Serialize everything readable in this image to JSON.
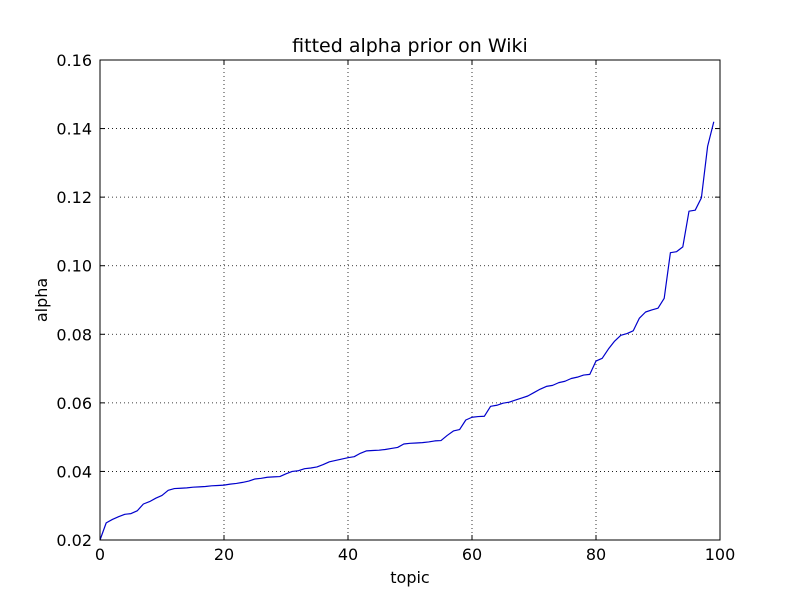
{
  "chart_data": {
    "type": "line",
    "title": "fitted alpha prior on Wiki",
    "xlabel": "topic",
    "ylabel": "alpha",
    "xlim": [
      0,
      100
    ],
    "ylim": [
      0.02,
      0.16
    ],
    "grid": true,
    "line_color": "#0000cc",
    "x_ticks": [
      0,
      20,
      40,
      60,
      80,
      100
    ],
    "y_ticks": [
      0.02,
      0.04,
      0.06,
      0.08,
      0.1,
      0.12,
      0.14,
      0.16
    ],
    "x_tick_labels": [
      "0",
      "20",
      "40",
      "60",
      "80",
      "100"
    ],
    "y_tick_labels": [
      "0.02",
      "0.04",
      "0.06",
      "0.08",
      "0.10",
      "0.12",
      "0.14",
      "0.16"
    ],
    "series": [
      {
        "x": [
          0,
          1,
          2,
          3,
          4,
          5,
          6,
          7,
          8,
          9,
          10,
          11,
          12,
          13,
          14,
          15,
          16,
          17,
          18,
          19,
          20,
          21,
          22,
          23,
          24,
          25,
          26,
          27,
          28,
          29,
          30,
          31,
          32,
          33,
          34,
          35,
          36,
          37,
          38,
          39,
          40,
          41,
          42,
          43,
          44,
          45,
          46,
          47,
          48,
          49,
          50,
          51,
          52,
          53,
          54,
          55,
          56,
          57,
          58,
          59,
          60,
          61,
          62,
          63,
          64,
          65,
          66,
          67,
          68,
          69,
          70,
          71,
          72,
          73,
          74,
          75,
          76,
          77,
          78,
          79,
          80,
          81,
          82,
          83,
          84,
          85,
          86,
          87,
          88,
          89,
          90,
          91,
          92,
          93,
          94,
          95,
          96,
          97,
          98,
          99
        ],
        "values": [
          0.02,
          0.025,
          0.026,
          0.0268,
          0.0275,
          0.0277,
          0.0285,
          0.0305,
          0.0312,
          0.0322,
          0.033,
          0.0345,
          0.035,
          0.0351,
          0.0352,
          0.0354,
          0.0355,
          0.0356,
          0.0358,
          0.0359,
          0.036,
          0.0363,
          0.0365,
          0.0368,
          0.0372,
          0.0378,
          0.038,
          0.0383,
          0.0384,
          0.0385,
          0.0393,
          0.04,
          0.0402,
          0.0408,
          0.041,
          0.0413,
          0.042,
          0.0428,
          0.0432,
          0.0436,
          0.044,
          0.0443,
          0.0453,
          0.046,
          0.0461,
          0.0462,
          0.0464,
          0.0467,
          0.047,
          0.048,
          0.0482,
          0.0483,
          0.0484,
          0.0486,
          0.0489,
          0.049,
          0.0505,
          0.0518,
          0.0522,
          0.055,
          0.0558,
          0.056,
          0.0561,
          0.059,
          0.0593,
          0.0599,
          0.0602,
          0.0608,
          0.0614,
          0.062,
          0.063,
          0.064,
          0.0648,
          0.0651,
          0.0659,
          0.0663,
          0.0671,
          0.0675,
          0.0681,
          0.0683,
          0.0722,
          0.073,
          0.0757,
          0.078,
          0.0797,
          0.0802,
          0.081,
          0.0847,
          0.0865,
          0.0871,
          0.0876,
          0.0905,
          0.1038,
          0.1041,
          0.1055,
          0.1159,
          0.1162,
          0.1198,
          0.1348,
          0.142
        ]
      }
    ]
  }
}
